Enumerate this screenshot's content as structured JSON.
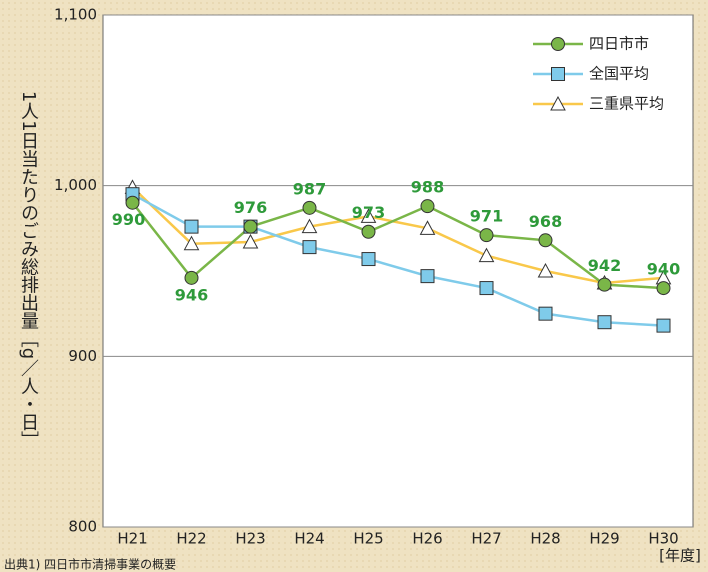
{
  "chart_data": {
    "type": "line",
    "y_axis_label": "1人1日当たりのごみ総排出量［g／人・日］",
    "x_axis_label": "[年度]",
    "source": "出典1) 四日市市清掃事業の概要",
    "categories": [
      "H21",
      "H22",
      "H23",
      "H24",
      "H25",
      "H26",
      "H27",
      "H28",
      "H29",
      "H30"
    ],
    "series": [
      {
        "name": "四日市市",
        "color": "#7ab648",
        "marker": "circle",
        "values": [
          990,
          946,
          976,
          987,
          973,
          988,
          971,
          968,
          942,
          940
        ]
      },
      {
        "name": "全国平均",
        "color": "#7fcbea",
        "marker": "square",
        "values": [
          995,
          976,
          976,
          964,
          957,
          947,
          940,
          925,
          920,
          918
        ]
      },
      {
        "name": "三重県平均",
        "color": "#f9c84a",
        "marker": "triangle",
        "values": [
          999,
          966,
          967,
          976,
          982,
          975,
          959,
          950,
          943,
          946
        ]
      }
    ],
    "labeled_series": 0,
    "label_color": "#2e9a3a",
    "ylim": [
      800,
      1100
    ],
    "yticks": [
      800,
      900,
      {
        "value": 1000,
        "label": "1,000"
      },
      {
        "value": 1100,
        "label": "1,100"
      }
    ],
    "grid": true,
    "legend": "upper right"
  }
}
